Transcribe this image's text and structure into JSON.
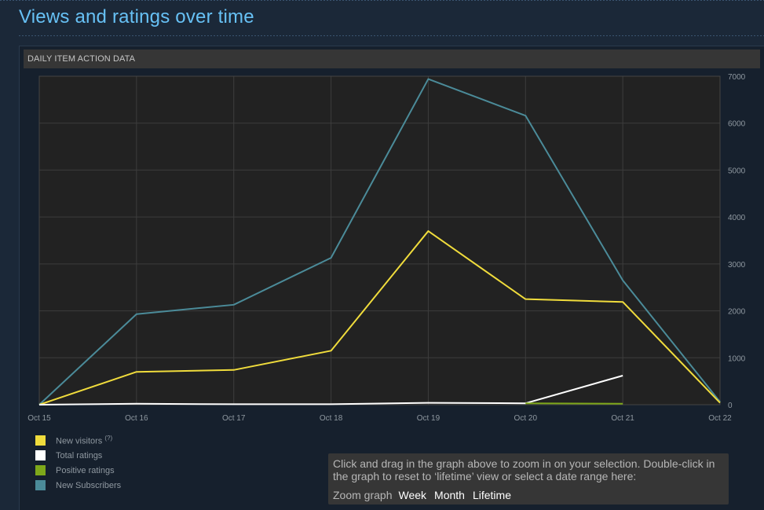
{
  "page": {
    "title": "Views and ratings over time"
  },
  "panel": {
    "header": "DAILY ITEM ACTION DATA"
  },
  "legend": [
    {
      "label": "New visitors",
      "help": "(?)",
      "color": "#f0dc3c"
    },
    {
      "label": "Total ratings",
      "help": "",
      "color": "#ffffff"
    },
    {
      "label": "Positive ratings",
      "help": "",
      "color": "#7ea81a"
    },
    {
      "label": "New Subscribers",
      "help": "",
      "color": "#4b8b99"
    }
  ],
  "zoom": {
    "help_text": "Click and drag in the graph above to zoom in on your selection. Double-click in the graph to reset to ‘lifetime’ view or select a date range here:",
    "label": "Zoom graph",
    "options": [
      "Week",
      "Month",
      "Lifetime"
    ]
  },
  "chart_data": {
    "type": "line",
    "categories": [
      "Oct 15",
      "Oct 16",
      "Oct 17",
      "Oct 18",
      "Oct 19",
      "Oct 20",
      "Oct 21",
      "Oct 22"
    ],
    "ylim": [
      0,
      7000
    ],
    "yticks": [
      0,
      1000,
      2000,
      3000,
      4000,
      5000,
      6000,
      7000
    ],
    "grid": true,
    "legend_position": "bottom-left",
    "series": [
      {
        "name": "New Subscribers",
        "color": "#4b8b99",
        "values": [
          0,
          1930,
          2130,
          3130,
          6940,
          6160,
          2650,
          60
        ]
      },
      {
        "name": "New visitors",
        "color": "#f0dc3c",
        "values": [
          0,
          700,
          740,
          1150,
          3700,
          2250,
          2190,
          40
        ]
      },
      {
        "name": "Total ratings",
        "color": "#ffffff",
        "values": [
          0,
          20,
          10,
          10,
          40,
          30,
          620,
          null
        ]
      },
      {
        "name": "Positive ratings",
        "color": "#7ea81a",
        "values": [
          null,
          null,
          null,
          null,
          null,
          30,
          20,
          null
        ]
      }
    ]
  }
}
